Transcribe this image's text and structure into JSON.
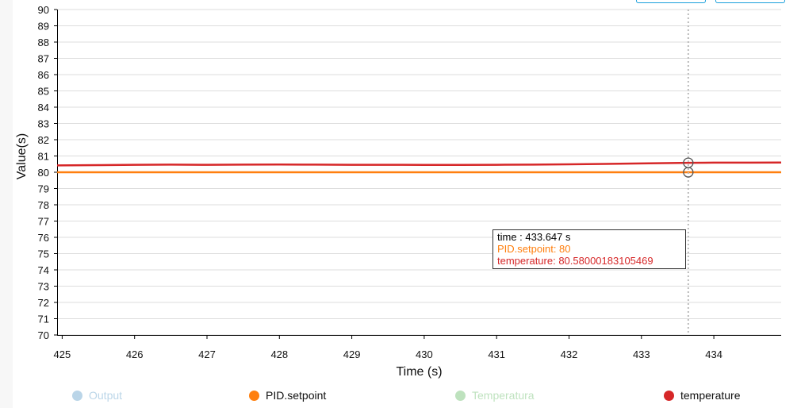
{
  "colors": {
    "output": "#1f77b4",
    "setpoint": "#ff7f0e",
    "temperatura": "#2ca02c",
    "temperature": "#d62728",
    "grid": "#dddddd",
    "hover_line": "#bbbbbb"
  },
  "chart_data": {
    "type": "line",
    "xlabel": "Time (s)",
    "ylabel": "Value(s)",
    "xlim": [
      424.93,
      434.93
    ],
    "ylim": [
      70,
      90
    ],
    "x_ticks": [
      425,
      426,
      427,
      428,
      429,
      430,
      431,
      432,
      433,
      434
    ],
    "y_ticks": [
      70,
      71,
      72,
      73,
      74,
      75,
      76,
      77,
      78,
      79,
      80,
      81,
      82,
      83,
      84,
      85,
      86,
      87,
      88,
      89,
      90
    ],
    "grid": true,
    "series": [
      {
        "name": "Output",
        "color": "#1f77b4",
        "disabled": true,
        "x": [],
        "y": []
      },
      {
        "name": "PID.setpoint",
        "color": "#ff7f0e",
        "disabled": false,
        "x": [
          424.93,
          426.0,
          427.0,
          428.0,
          429.0,
          430.0,
          431.0,
          432.0,
          433.0,
          433.647,
          434.93
        ],
        "y": [
          80,
          80,
          80,
          80,
          80,
          80,
          80,
          80,
          80,
          80,
          80
        ]
      },
      {
        "name": "Temperatura",
        "color": "#2ca02c",
        "disabled": true,
        "x": [],
        "y": []
      },
      {
        "name": "temperature",
        "color": "#d62728",
        "disabled": false,
        "x": [
          424.93,
          425.5,
          426.0,
          426.5,
          427.0,
          427.5,
          428.0,
          428.5,
          429.0,
          429.5,
          430.0,
          430.5,
          431.0,
          431.5,
          432.0,
          432.5,
          433.0,
          433.647,
          434.0,
          434.5,
          434.93
        ],
        "y": [
          80.42,
          80.44,
          80.46,
          80.47,
          80.46,
          80.47,
          80.48,
          80.47,
          80.46,
          80.46,
          80.45,
          80.45,
          80.46,
          80.47,
          80.49,
          80.51,
          80.54,
          80.58,
          80.59,
          80.59,
          80.6
        ]
      }
    ],
    "hover": {
      "x": 433.647,
      "points": [
        80,
        80.58000183105469
      ]
    }
  },
  "tooltip": {
    "time": "time : 433.647 s",
    "setpoint": "PID.setpoint: 80",
    "temperature": "temperature: 80.58000183105469"
  },
  "legend": {
    "output": "Output",
    "setpoint": "PID.setpoint",
    "temperatura": "Temperatura",
    "temperature": "temperature"
  }
}
